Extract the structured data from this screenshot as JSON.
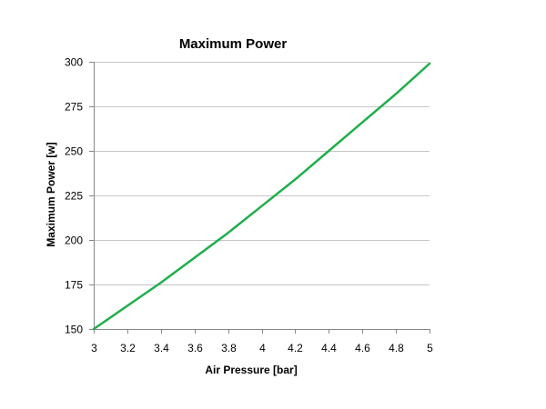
{
  "chart_data": {
    "type": "line",
    "title": "Maximum Power",
    "xlabel": "Air Pressure [bar]",
    "ylabel": "Maximum Power [w]",
    "xlim": [
      3,
      5
    ],
    "ylim": [
      150,
      300
    ],
    "x_ticks": [
      "3",
      "3.2",
      "3.4",
      "3.6",
      "3.8",
      "4",
      "4.2",
      "4.4",
      "4.6",
      "4.8",
      "5"
    ],
    "y_ticks": [
      "150",
      "175",
      "200",
      "225",
      "250",
      "275",
      "300"
    ],
    "grid": "horizontal",
    "legend": "none",
    "series": [
      {
        "color": "#1fae4b",
        "x": [
          3,
          3.2,
          3.4,
          3.6,
          3.8,
          4,
          4.2,
          4.4,
          4.6,
          4.8,
          5
        ],
        "y": [
          150,
          163,
          176,
          190,
          204,
          219,
          234,
          250,
          266,
          282,
          299
        ]
      }
    ]
  }
}
